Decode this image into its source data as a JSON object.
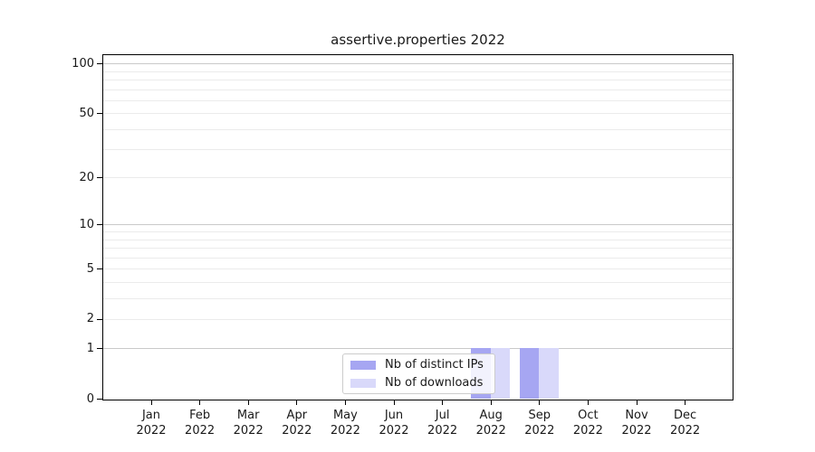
{
  "title": "assertive.properties 2022",
  "legend": {
    "position": "lower center",
    "items": [
      {
        "label": "Nb of distinct IPs",
        "color": "#a6a6f2"
      },
      {
        "label": "Nb of downloads",
        "color": "#d9d9fa"
      }
    ]
  },
  "chart_data": {
    "type": "bar",
    "title": "assertive.properties 2022",
    "categories": [
      "Jan 2022",
      "Feb 2022",
      "Mar 2022",
      "Apr 2022",
      "May 2022",
      "Jun 2022",
      "Jul 2022",
      "Aug 2022",
      "Sep 2022",
      "Oct 2022",
      "Nov 2022",
      "Dec 2022"
    ],
    "series": [
      {
        "name": "Nb of distinct IPs",
        "color": "#a6a6f2",
        "values": [
          0,
          0,
          0,
          0,
          0,
          0,
          0,
          1,
          1,
          0,
          0,
          0
        ]
      },
      {
        "name": "Nb of downloads",
        "color": "#d9d9fa",
        "values": [
          0,
          0,
          0,
          0,
          0,
          0,
          0,
          1,
          1,
          0,
          0,
          0
        ]
      }
    ],
    "xlabel": "",
    "ylabel": "",
    "y_axis": {
      "scale": "log1p",
      "tick_values": [
        0,
        1,
        2,
        5,
        10,
        20,
        50,
        100
      ],
      "tick_labels": [
        "0",
        "1",
        "2",
        "5",
        "10",
        "20",
        "50",
        "100"
      ],
      "major_gridlines": [
        1,
        10,
        100
      ],
      "minor_gridlines": [
        2,
        3,
        4,
        5,
        6,
        7,
        8,
        9,
        20,
        30,
        40,
        50,
        60,
        70,
        80,
        90
      ],
      "range": [
        0,
        113
      ]
    },
    "grid": true,
    "legend_position": "lower center",
    "style": {
      "major_grid_color": "#c9c9c9",
      "minor_grid_color": "#ebebeb",
      "axis_color": "#000000",
      "background": "#ffffff"
    }
  }
}
